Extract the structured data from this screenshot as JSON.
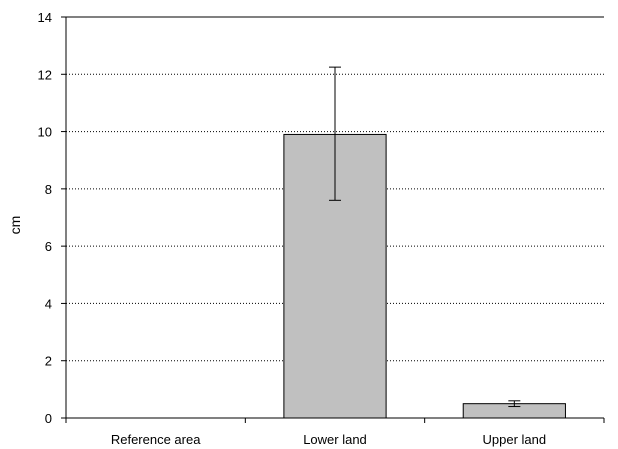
{
  "chart_data": {
    "type": "bar",
    "title": "",
    "xlabel": "",
    "ylabel": "cm",
    "ylim": [
      0,
      14
    ],
    "yticks": [
      0,
      2,
      4,
      6,
      8,
      10,
      12,
      14
    ],
    "grid": "horizontal dotted",
    "categories": [
      "Reference area",
      "Lower land",
      "Upper land"
    ],
    "values": [
      0,
      9.9,
      0.5
    ],
    "error_upper": [
      null,
      12.25,
      0.6
    ],
    "error_lower": [
      null,
      7.6,
      0.4
    ],
    "colors": {
      "bar_fill": "#c0c0c0",
      "bar_stroke": "#000000",
      "grid": "#000000"
    }
  }
}
